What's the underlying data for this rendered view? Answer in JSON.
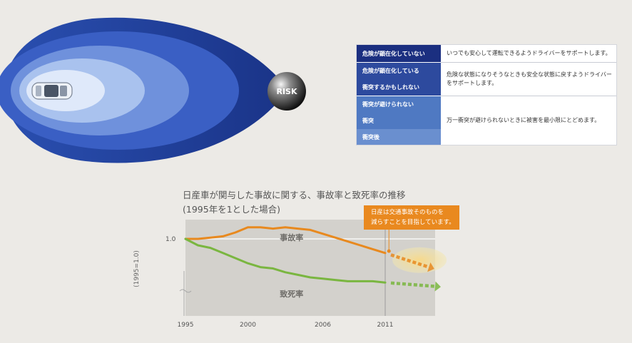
{
  "diagram": {
    "risk_label": "RISK",
    "colors": {
      "outer": "#1e3f9a",
      "ring2": "#3a5fc4",
      "ring3": "#6f91dc",
      "ring4": "#a9c2ee",
      "inner": "#dfe9fa"
    }
  },
  "risk_table": {
    "left_colors": {
      "row1": "#1b2f80",
      "row2": "#2d4a9e",
      "row3": "#4f79c2"
    },
    "rows": [
      {
        "labels": [
          "危険が顕在化していない"
        ],
        "description": "いつでも安心して運転できるようドライバーをサポートします。"
      },
      {
        "labels": [
          "危険が顕在化している",
          "衝突するかもしれない"
        ],
        "description": "危険な状態になりそうなときも安全な状態に戻すようドライバーをサポートします。"
      },
      {
        "labels": [
          "衝突が避けられない",
          "衝突",
          "衝突後"
        ],
        "description": "万一衝突が避けられないときに被害を最小限にとどめます。"
      }
    ]
  },
  "chart_data": {
    "type": "line",
    "title": "日産車が関与した事故に関する、事故率と致死率の推移",
    "subtitle": "(1995年を1とした場合)",
    "ylabel": "(1995=1.0)",
    "y_tick_labels": [
      "1.0"
    ],
    "x_tick_labels": [
      "1995",
      "2000",
      "2006",
      "2011"
    ],
    "xlim": [
      1995,
      2015
    ],
    "ylim": [
      0.4,
      1.15
    ],
    "series": [
      {
        "name": "事故率",
        "color": "#e8891e",
        "x": [
          1995,
          1996,
          1997,
          1998,
          1999,
          2000,
          2001,
          2002,
          2003,
          2004,
          2005,
          2006,
          2007,
          2008,
          2009,
          2010,
          2011
        ],
        "values": [
          1.0,
          1.0,
          1.01,
          1.02,
          1.05,
          1.09,
          1.09,
          1.08,
          1.09,
          1.08,
          1.07,
          1.04,
          1.01,
          0.98,
          0.95,
          0.92,
          0.89
        ],
        "projection": {
          "x": [
            2011,
            2014.5
          ],
          "values": [
            0.89,
            0.78
          ]
        }
      },
      {
        "name": "致死率",
        "color": "#7ab640",
        "x": [
          1995,
          1996,
          1997,
          1998,
          1999,
          2000,
          2001,
          2002,
          2003,
          2004,
          2005,
          2006,
          2007,
          2008,
          2009,
          2010,
          2011
        ],
        "values": [
          1.0,
          0.95,
          0.93,
          0.89,
          0.85,
          0.81,
          0.78,
          0.77,
          0.74,
          0.72,
          0.7,
          0.69,
          0.68,
          0.67,
          0.67,
          0.67,
          0.66
        ],
        "projection": {
          "x": [
            2011,
            2015
          ],
          "values": [
            0.66,
            0.63
          ]
        }
      }
    ],
    "annotation": [
      "日産は交通事故そのものを",
      "減らすことを目指しています。"
    ]
  }
}
